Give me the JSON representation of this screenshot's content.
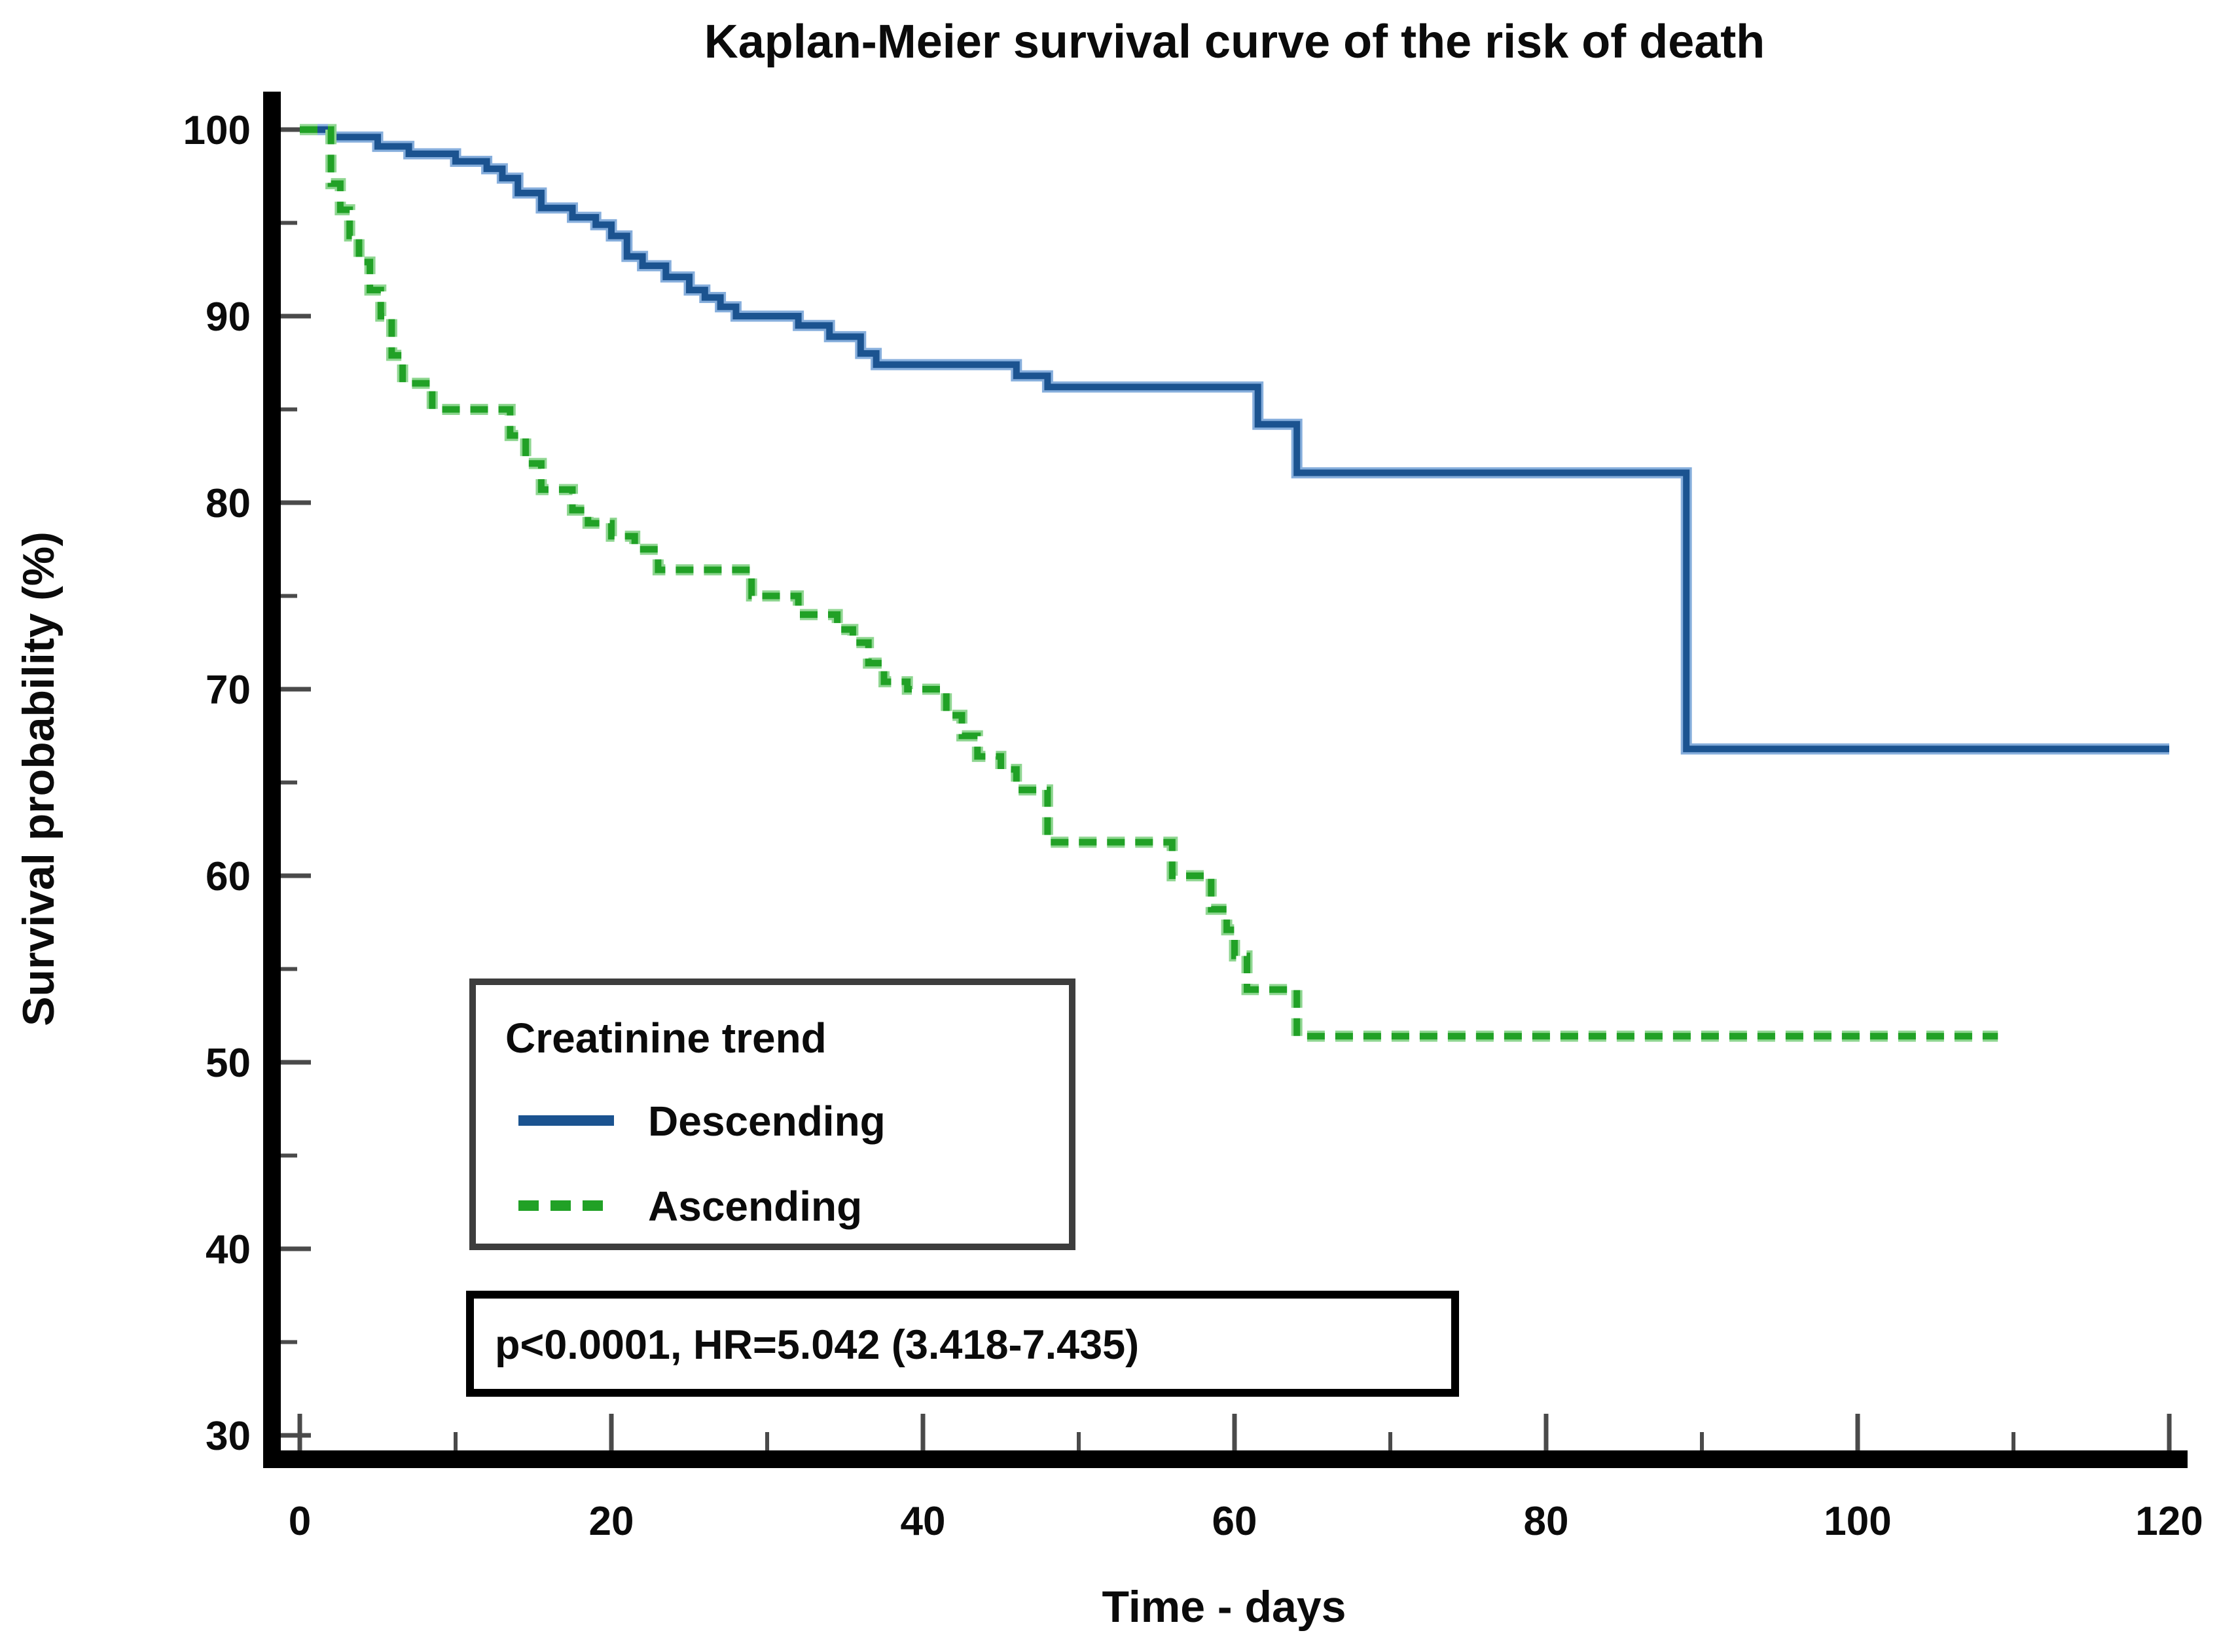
{
  "chart_data": {
    "type": "line",
    "subtype": "kaplan-meier-step",
    "title": "Kaplan-Meier survival curve of the risk of death",
    "xlabel": "Time - days",
    "ylabel": "Survival probability (%)",
    "xlim": [
      0,
      120
    ],
    "ylim": [
      30,
      100
    ],
    "grid": false,
    "legend_position": "inside-lower-left",
    "x_major_ticks": [
      0,
      20,
      40,
      60,
      80,
      100,
      120
    ],
    "x_minor_ticks": [
      10,
      30,
      50,
      70,
      90,
      110
    ],
    "x_tick_labels": [
      "0",
      "20",
      "40",
      "60",
      "80",
      "100",
      "120"
    ],
    "y_major_ticks": [
      100,
      90,
      80,
      70,
      60,
      50,
      40,
      30
    ],
    "y_minor_ticks": [
      95,
      85,
      75,
      65,
      55,
      45,
      35
    ],
    "y_tick_labels": [
      "100",
      "90",
      "80",
      "70",
      "60",
      "50",
      "40",
      "30"
    ],
    "legend_title": "Creatinine trend",
    "annotation": "p<0.0001, HR=5.042 (3.418-7.435)",
    "series": [
      {
        "name": "Descending",
        "color": "#1b5390",
        "halo_color": "#86aedc",
        "line_style": "solid",
        "end_day": 120,
        "steps": [
          [
            0,
            100
          ],
          [
            2,
            99.6
          ],
          [
            5,
            99.1
          ],
          [
            7,
            98.7
          ],
          [
            10,
            98.3
          ],
          [
            12,
            97.9
          ],
          [
            13,
            97.4
          ],
          [
            14,
            96.6
          ],
          [
            15.5,
            95.8
          ],
          [
            17.5,
            95.3
          ],
          [
            19,
            94.9
          ],
          [
            20,
            94.3
          ],
          [
            21,
            93.2
          ],
          [
            22,
            92.7
          ],
          [
            23.5,
            92.1
          ],
          [
            25,
            91.4
          ],
          [
            26,
            91.0
          ],
          [
            27,
            90.5
          ],
          [
            28,
            90.0
          ],
          [
            32,
            89.5
          ],
          [
            34,
            88.9
          ],
          [
            36,
            88.0
          ],
          [
            37,
            87.4
          ],
          [
            46,
            86.8
          ],
          [
            48,
            86.2
          ],
          [
            61.5,
            84.2
          ],
          [
            64,
            81.6
          ],
          [
            89,
            66.8
          ]
        ]
      },
      {
        "name": "Ascending",
        "color": "#21a126",
        "halo_color": "#8fd691",
        "line_style": "dashed",
        "end_day": 109,
        "steps": [
          [
            0,
            100
          ],
          [
            2,
            97.1
          ],
          [
            2.6,
            95.7
          ],
          [
            3.2,
            94.3
          ],
          [
            3.8,
            92.9
          ],
          [
            4.5,
            91.4
          ],
          [
            5.2,
            90.0
          ],
          [
            5.9,
            87.9
          ],
          [
            6.6,
            86.4
          ],
          [
            8.5,
            85.0
          ],
          [
            13.5,
            83.6
          ],
          [
            14.5,
            82.1
          ],
          [
            15.5,
            80.7
          ],
          [
            17.5,
            79.6
          ],
          [
            18.5,
            78.9
          ],
          [
            20,
            78.2
          ],
          [
            21.5,
            77.5
          ],
          [
            23,
            76.4
          ],
          [
            29,
            75.0
          ],
          [
            32,
            74.0
          ],
          [
            34.5,
            73.2
          ],
          [
            35.5,
            72.5
          ],
          [
            36.5,
            71.4
          ],
          [
            37.5,
            70.4
          ],
          [
            39,
            70.0
          ],
          [
            41.5,
            68.6
          ],
          [
            42.5,
            67.5
          ],
          [
            43.5,
            66.4
          ],
          [
            45,
            65.7
          ],
          [
            46,
            64.6
          ],
          [
            48,
            61.8
          ],
          [
            56,
            60.0
          ],
          [
            58.5,
            58.2
          ],
          [
            59.5,
            57.1
          ],
          [
            60,
            55.7
          ],
          [
            60.8,
            53.9
          ],
          [
            64,
            51.4
          ]
        ]
      }
    ]
  },
  "legend": {
    "title": "Creatinine trend",
    "items": [
      {
        "label": "Descending",
        "color": "#1b5390",
        "style": "solid"
      },
      {
        "label": "Ascending",
        "color": "#21a126",
        "style": "dashed"
      }
    ]
  },
  "stats": {
    "text": "p<0.0001, HR=5.042 (3.418-7.435)"
  }
}
